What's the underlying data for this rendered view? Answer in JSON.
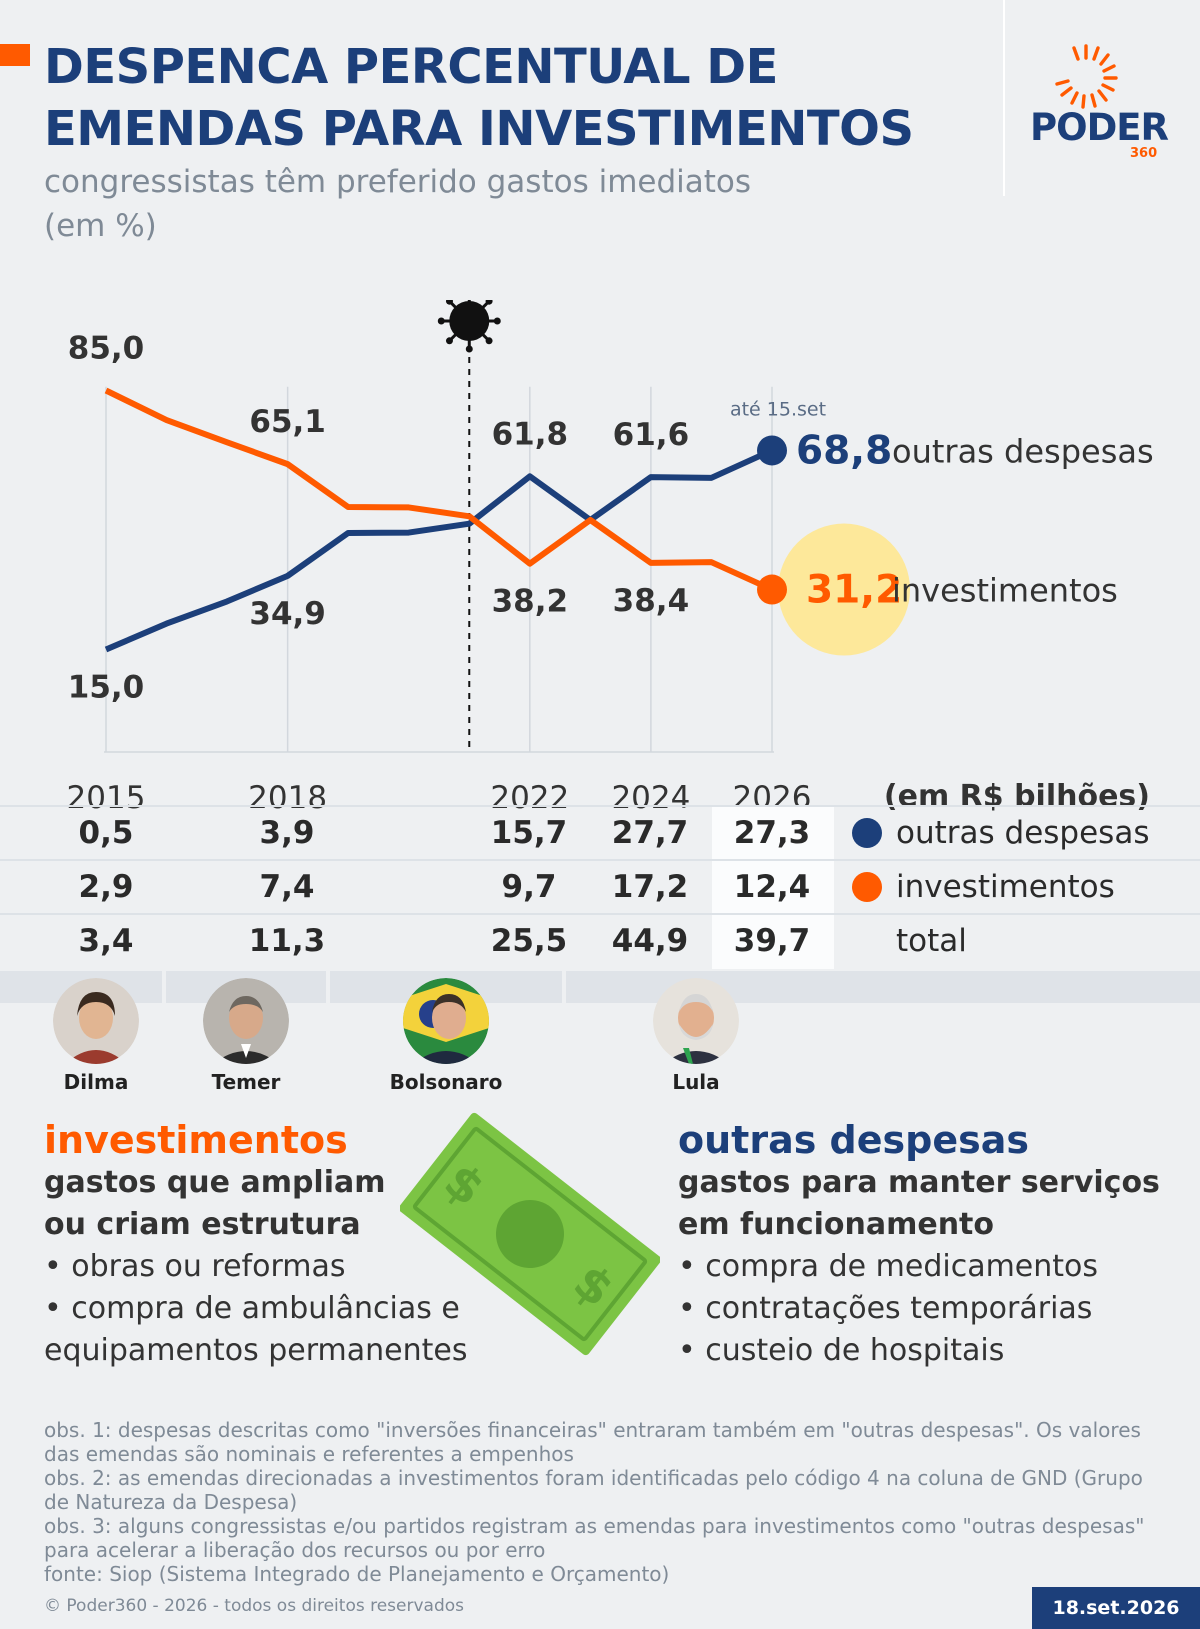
{
  "header": {
    "title_line1": "DESPENCA PERCENTUAL DE",
    "title_line2": "EMENDAS PARA INVESTIMENTOS",
    "subtitle_line1": "congressistas têm preferido gastos imediatos",
    "subtitle_line2": "(em %)",
    "logo_main": "PODER",
    "logo_sub": "360"
  },
  "colors": {
    "navy": "#1c3f7a",
    "orange": "#ff5a00",
    "highlight": "#fde89a",
    "money": "#7cc444"
  },
  "chart_data": {
    "type": "line",
    "x": [
      2015,
      2016,
      2017,
      2018,
      2019,
      2020,
      2021,
      2022,
      2023,
      2024,
      2025,
      2026
    ],
    "series": [
      {
        "name": "outras despesas",
        "color": "#1c3f7a",
        "values": [
          15.0,
          22.0,
          28.0,
          34.9,
          46.5,
          46.6,
          49.0,
          61.8,
          50.0,
          61.6,
          61.4,
          68.8
        ]
      },
      {
        "name": "investimentos",
        "color": "#ff5a00",
        "values": [
          85.0,
          77.0,
          71.0,
          65.1,
          53.5,
          53.4,
          51.0,
          38.2,
          50.0,
          38.4,
          38.6,
          31.2
        ]
      }
    ],
    "point_labels": [
      {
        "series": "investimentos",
        "x": 2015,
        "text": "85,0"
      },
      {
        "series": "investimentos",
        "x": 2018,
        "text": "65,1"
      },
      {
        "series": "outras despesas",
        "x": 2022,
        "text": "61,8"
      },
      {
        "series": "outras despesas",
        "x": 2024,
        "text": "61,6"
      },
      {
        "series": "outras despesas",
        "x": 2015,
        "text": "15,0"
      },
      {
        "series": "outras despesas",
        "x": 2018,
        "text": "34,9"
      },
      {
        "series": "investimentos",
        "x": 2022,
        "text": "38,2"
      },
      {
        "series": "investimentos",
        "x": 2024,
        "text": "38,4"
      }
    ],
    "end_labels": {
      "outras_value": "68,8",
      "outras_name": "outras despesas",
      "invest_value": "31,2",
      "invest_name": "investimentos",
      "note": "até 15.set"
    },
    "x_tick_labels": [
      "2015",
      "2018",
      "2022",
      "2024",
      "2026"
    ],
    "covid_marker_x": 2021,
    "ylim": [
      0,
      100
    ],
    "grid": "vertical"
  },
  "table": {
    "unit": "(em R$ bilhões)",
    "rows": [
      {
        "label": "outras despesas",
        "values": [
          "0,5",
          "3,9",
          "15,7",
          "27,7",
          "27,3"
        ]
      },
      {
        "label": "investimentos",
        "values": [
          "2,9",
          "7,4",
          "9,7",
          "17,2",
          "12,4"
        ]
      },
      {
        "label": "total",
        "values": [
          "3,4",
          "11,3",
          "25,5",
          "44,9",
          "39,7"
        ]
      }
    ]
  },
  "presidents": [
    "Dilma",
    "Temer",
    "Bolsonaro",
    "Lula"
  ],
  "investimentos": {
    "heading": "investimentos",
    "desc_line1": "gastos que ampliam",
    "desc_line2": "ou criam estrutura",
    "item1": "• obras ou reformas",
    "item2_line1": "• compra de ambulâncias e",
    "item2_line2": "equipamentos permanentes"
  },
  "outras": {
    "heading": "outras despesas",
    "desc_line1": "gastos para manter serviços",
    "desc_line2": "em funcionamento",
    "item1": "• compra de medicamentos",
    "item2": "• contratações temporárias",
    "item3": "• custeio de hospitais"
  },
  "notes": {
    "obs1": "obs. 1: despesas descritas como \"inversões financeiras\" entraram também em \"outras despesas\". Os valores das emendas são nominais e referentes a empenhos",
    "obs2": "obs. 2: as emendas direcionadas a investimentos foram identificadas pelo código 4 na coluna de GND (Grupo de Natureza da Despesa)",
    "obs3": "obs. 3: alguns congressistas e/ou partidos registram as emendas para investimentos como \"outras despesas\" para acelerar a liberação dos recursos ou por erro",
    "source": "fonte: Siop (Sistema Integrado de Planejamento e Orçamento)",
    "copyright": "© Poder360 - 2026 - todos os direitos reservados",
    "date": "18.set.2026"
  }
}
